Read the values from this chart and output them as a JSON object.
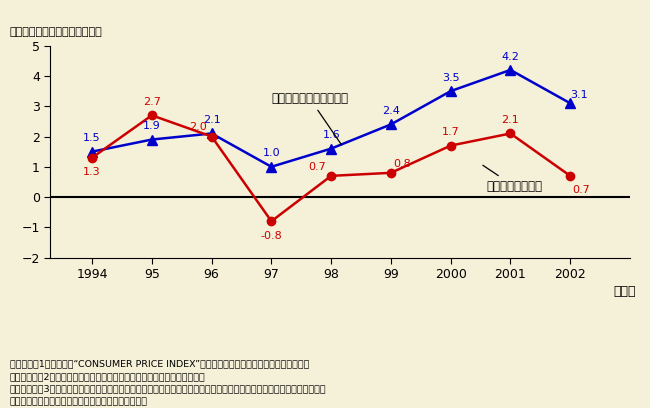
{
  "years": [
    1994,
    1995,
    1996,
    1997,
    1998,
    1999,
    2000,
    2001,
    2002
  ],
  "services": [
    1.5,
    1.9,
    2.1,
    1.0,
    1.6,
    2.4,
    3.5,
    4.2,
    3.1
  ],
  "goods": [
    1.3,
    2.7,
    2.0,
    -0.8,
    0.7,
    0.8,
    1.7,
    2.1,
    0.7
  ],
  "services_color": "#0000cc",
  "goods_color": "#cc0000",
  "background_color": "#f5f0d8",
  "title_y_label": "（対前年比の差：％ポイント）",
  "xlabel": "（年）",
  "ylim": [
    -2,
    5
  ],
  "yticks": [
    -2,
    -1,
    0,
    1,
    2,
    3,
    4,
    5
  ],
  "xtick_labels": [
    "1994",
    "95",
    "96",
    "97",
    "98",
    "99",
    "2000",
    "2001",
    "2002"
  ],
  "services_label": "サービス（米国－日本）",
  "goods_label": "財（米国－日本）",
  "note_line1": "（備考）　1．米労働省“CONSUMER PRICE INDEX”、総務省「消費者物価指数」により作成。",
  "note_line2": "　2．財、サービスともに米国と日本の対前年物価上昇率の差。",
  "note_line3": "　3．米国は全都市平均で、財については食品及びエネルギー商品を除いた。日本は全国平均で、財については",
  "note_line4": "　　生鮮食品及び石油製品を除いた。"
}
